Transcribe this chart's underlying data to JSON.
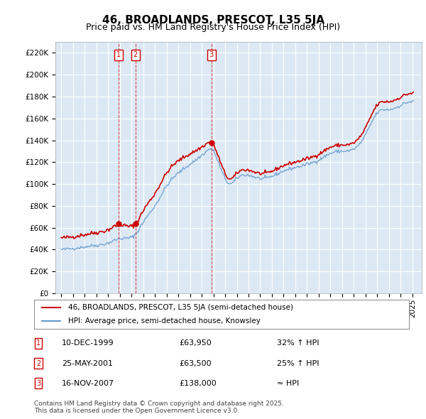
{
  "title": "46, BROADLANDS, PRESCOT, L35 5JA",
  "subtitle": "Price paid vs. HM Land Registry's House Price Index (HPI)",
  "transactions": [
    {
      "label": "1",
      "date": "1999-12-10",
      "price": 63950,
      "note": "32% ↑ HPI"
    },
    {
      "label": "2",
      "date": "2001-05-25",
      "price": 63500,
      "note": "25% ↑ HPI"
    },
    {
      "label": "3",
      "date": "2007-11-16",
      "price": 138000,
      "note": "≈ HPI"
    }
  ],
  "legend_red": "46, BROADLANDS, PRESCOT, L35 5JA (semi-detached house)",
  "legend_blue": "HPI: Average price, semi-detached house, Knowsley",
  "footer": "Contains HM Land Registry data © Crown copyright and database right 2025.\nThis data is licensed under the Open Government Licence v3.0.",
  "table_rows": [
    [
      "1",
      "10-DEC-1999",
      "£63,950",
      "32% ↑ HPI"
    ],
    [
      "2",
      "25-MAY-2001",
      "£63,500",
      "25% ↑ HPI"
    ],
    [
      "3",
      "16-NOV-2007",
      "£138,000",
      "≈ HPI"
    ]
  ],
  "ylim": [
    0,
    230000
  ],
  "yticks": [
    0,
    20000,
    40000,
    60000,
    80000,
    100000,
    120000,
    140000,
    160000,
    180000,
    200000,
    220000
  ],
  "bg_color": "#dce9f5",
  "grid_color": "#ffffff",
  "red_color": "#cc0000",
  "blue_color": "#6699cc"
}
